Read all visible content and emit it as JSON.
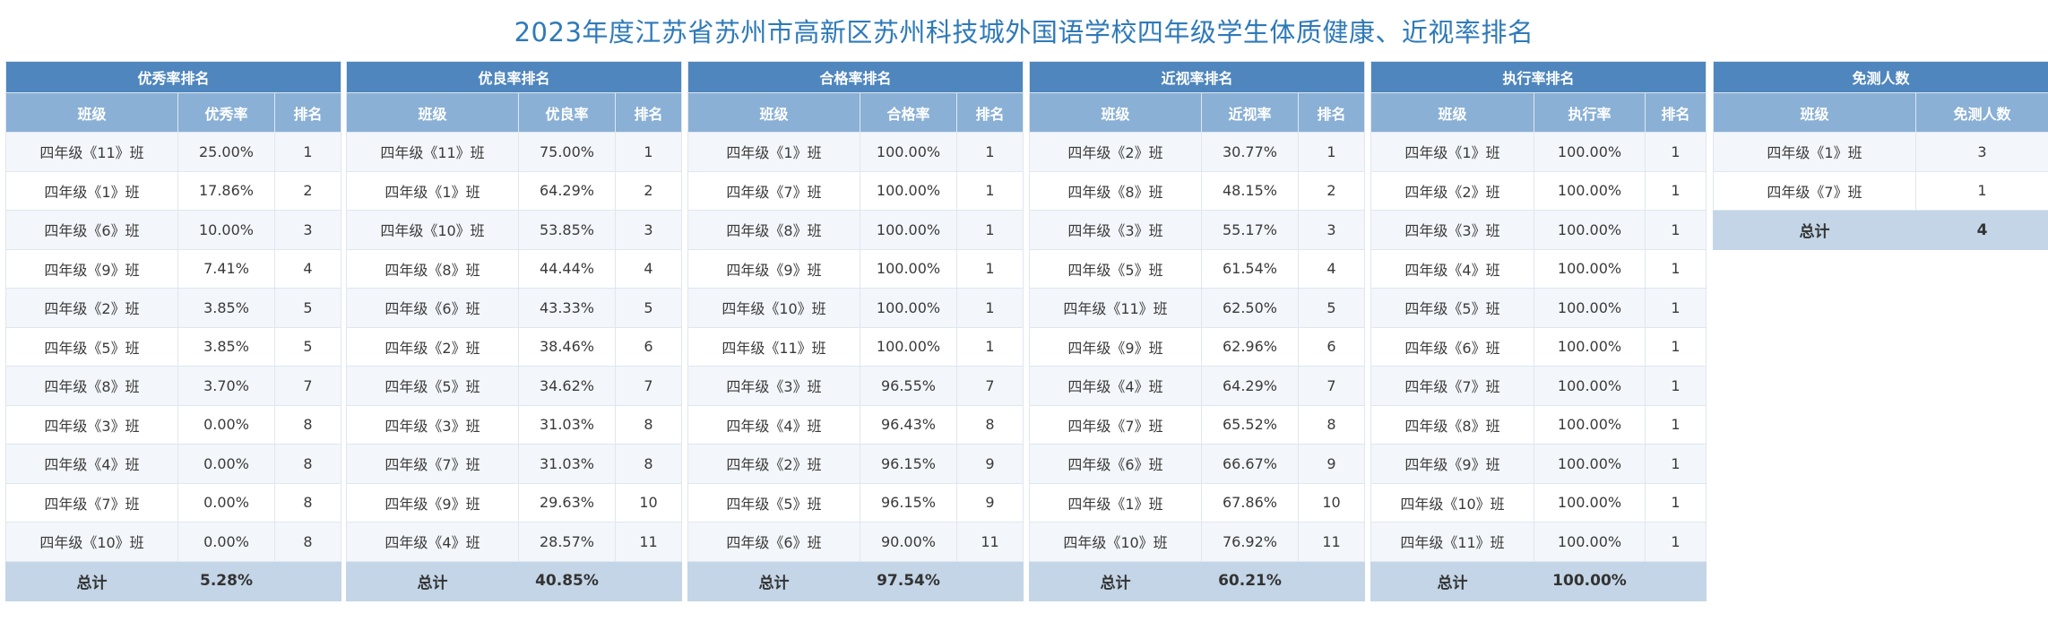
{
  "title": "2023年度江苏省苏州市高新区苏州科技城外国语学校四年级学生体质健康、近视率排名",
  "tables": [
    {
      "heading": "优秀率排名",
      "columns": [
        "班级",
        "优秀率",
        "排名"
      ],
      "rows": [
        [
          "四年级《11》班",
          "25.00%",
          "1"
        ],
        [
          "四年级《1》班",
          "17.86%",
          "2"
        ],
        [
          "四年级《6》班",
          "10.00%",
          "3"
        ],
        [
          "四年级《9》班",
          "7.41%",
          "4"
        ],
        [
          "四年级《2》班",
          "3.85%",
          "5"
        ],
        [
          "四年级《5》班",
          "3.85%",
          "5"
        ],
        [
          "四年级《8》班",
          "3.70%",
          "7"
        ],
        [
          "四年级《3》班",
          "0.00%",
          "8"
        ],
        [
          "四年级《4》班",
          "0.00%",
          "8"
        ],
        [
          "四年级《7》班",
          "0.00%",
          "8"
        ],
        [
          "四年级《10》班",
          "0.00%",
          "8"
        ]
      ],
      "total": [
        "总计",
        "5.28%",
        ""
      ]
    },
    {
      "heading": "优良率排名",
      "columns": [
        "班级",
        "优良率",
        "排名"
      ],
      "rows": [
        [
          "四年级《11》班",
          "75.00%",
          "1"
        ],
        [
          "四年级《1》班",
          "64.29%",
          "2"
        ],
        [
          "四年级《10》班",
          "53.85%",
          "3"
        ],
        [
          "四年级《8》班",
          "44.44%",
          "4"
        ],
        [
          "四年级《6》班",
          "43.33%",
          "5"
        ],
        [
          "四年级《2》班",
          "38.46%",
          "6"
        ],
        [
          "四年级《5》班",
          "34.62%",
          "7"
        ],
        [
          "四年级《3》班",
          "31.03%",
          "8"
        ],
        [
          "四年级《7》班",
          "31.03%",
          "8"
        ],
        [
          "四年级《9》班",
          "29.63%",
          "10"
        ],
        [
          "四年级《4》班",
          "28.57%",
          "11"
        ]
      ],
      "total": [
        "总计",
        "40.85%",
        ""
      ]
    },
    {
      "heading": "合格率排名",
      "columns": [
        "班级",
        "合格率",
        "排名"
      ],
      "rows": [
        [
          "四年级《1》班",
          "100.00%",
          "1"
        ],
        [
          "四年级《7》班",
          "100.00%",
          "1"
        ],
        [
          "四年级《8》班",
          "100.00%",
          "1"
        ],
        [
          "四年级《9》班",
          "100.00%",
          "1"
        ],
        [
          "四年级《10》班",
          "100.00%",
          "1"
        ],
        [
          "四年级《11》班",
          "100.00%",
          "1"
        ],
        [
          "四年级《3》班",
          "96.55%",
          "7"
        ],
        [
          "四年级《4》班",
          "96.43%",
          "8"
        ],
        [
          "四年级《2》班",
          "96.15%",
          "9"
        ],
        [
          "四年级《5》班",
          "96.15%",
          "9"
        ],
        [
          "四年级《6》班",
          "90.00%",
          "11"
        ]
      ],
      "total": [
        "总计",
        "97.54%",
        ""
      ]
    },
    {
      "heading": "近视率排名",
      "columns": [
        "班级",
        "近视率",
        "排名"
      ],
      "rows": [
        [
          "四年级《2》班",
          "30.77%",
          "1"
        ],
        [
          "四年级《8》班",
          "48.15%",
          "2"
        ],
        [
          "四年级《3》班",
          "55.17%",
          "3"
        ],
        [
          "四年级《5》班",
          "61.54%",
          "4"
        ],
        [
          "四年级《11》班",
          "62.50%",
          "5"
        ],
        [
          "四年级《9》班",
          "62.96%",
          "6"
        ],
        [
          "四年级《4》班",
          "64.29%",
          "7"
        ],
        [
          "四年级《7》班",
          "65.52%",
          "8"
        ],
        [
          "四年级《6》班",
          "66.67%",
          "9"
        ],
        [
          "四年级《1》班",
          "67.86%",
          "10"
        ],
        [
          "四年级《10》班",
          "76.92%",
          "11"
        ]
      ],
      "total": [
        "总计",
        "60.21%",
        ""
      ]
    },
    {
      "heading": "执行率排名",
      "columns": [
        "班级",
        "执行率",
        "排名"
      ],
      "rows": [
        [
          "四年级《1》班",
          "100.00%",
          "1"
        ],
        [
          "四年级《2》班",
          "100.00%",
          "1"
        ],
        [
          "四年级《3》班",
          "100.00%",
          "1"
        ],
        [
          "四年级《4》班",
          "100.00%",
          "1"
        ],
        [
          "四年级《5》班",
          "100.00%",
          "1"
        ],
        [
          "四年级《6》班",
          "100.00%",
          "1"
        ],
        [
          "四年级《7》班",
          "100.00%",
          "1"
        ],
        [
          "四年级《8》班",
          "100.00%",
          "1"
        ],
        [
          "四年级《9》班",
          "100.00%",
          "1"
        ],
        [
          "四年级《10》班",
          "100.00%",
          "1"
        ],
        [
          "四年级《11》班",
          "100.00%",
          "1"
        ]
      ],
      "total": [
        "总计",
        "100.00%",
        ""
      ]
    },
    {
      "heading": "免测人数",
      "columns": [
        "班级",
        "免测人数"
      ],
      "rows": [
        [
          "四年级《1》班",
          "3"
        ],
        [
          "四年级《7》班",
          "1"
        ]
      ],
      "total": [
        "总计",
        "4"
      ]
    }
  ]
}
